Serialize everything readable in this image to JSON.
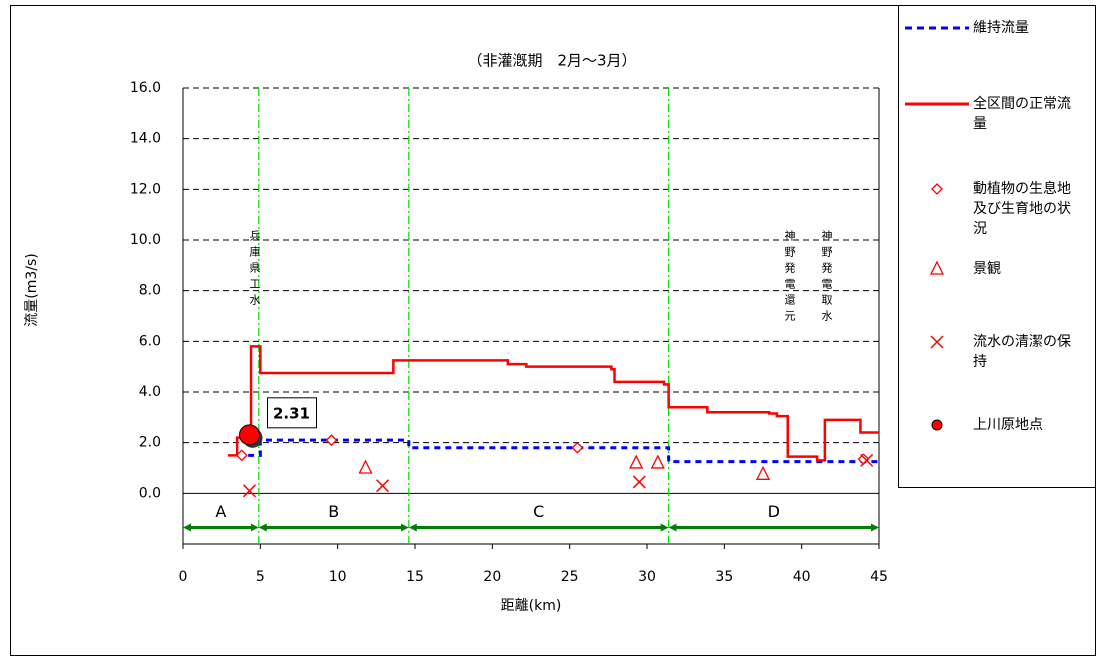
{
  "chart_data": {
    "type": "line",
    "title": "（非灌漑期　2月～3月）",
    "y_label": "流量(m3/s)",
    "x_label": "距離(km)",
    "xlim": [
      0,
      45
    ],
    "xticks": [
      0,
      5,
      10,
      15,
      20,
      25,
      30,
      35,
      40,
      45
    ],
    "ylim": [
      -2,
      16
    ],
    "yticks": [
      {
        "value": 0,
        "label": "0.0"
      },
      {
        "value": 2,
        "label": "2.0"
      },
      {
        "value": 4,
        "label": "4.0"
      },
      {
        "value": 6,
        "label": "6.0"
      },
      {
        "value": 8,
        "label": "8.0"
      },
      {
        "value": 10,
        "label": "10.0"
      },
      {
        "value": 12,
        "label": "12.0"
      },
      {
        "value": 14,
        "label": "14.0"
      },
      {
        "value": 16,
        "label": "16.0"
      }
    ],
    "grid": true,
    "series": [
      {
        "name": "維持流量",
        "color": "#0000ff",
        "marker": "dashed-line",
        "x": [
          3.5,
          5.0,
          5.0,
          14.6,
          14.6,
          31.4,
          31.4,
          45
        ],
        "values": [
          1.5,
          1.5,
          2.1,
          2.1,
          1.8,
          1.8,
          1.25,
          1.25
        ]
      },
      {
        "name": "全区間の正常流量",
        "color": "#ff0000",
        "marker": "line",
        "x": [
          2.9,
          3.5,
          3.5,
          4.4,
          4.4,
          5.0,
          5.0,
          13.6,
          13.6,
          21.0,
          21.0,
          22.2,
          22.2,
          27.7,
          27.7,
          27.9,
          27.9,
          31.1,
          31.1,
          31.4,
          31.4,
          33.9,
          33.9,
          37.9,
          37.9,
          38.4,
          38.4,
          39.1,
          39.1,
          41.0,
          41.0,
          41.5,
          41.5,
          43.8,
          43.8,
          45
        ],
        "values": [
          1.5,
          1.5,
          2.2,
          2.2,
          5.8,
          5.8,
          4.75,
          4.75,
          5.25,
          5.25,
          5.1,
          5.1,
          5.0,
          5.0,
          4.9,
          4.9,
          4.4,
          4.4,
          4.3,
          4.3,
          3.4,
          3.4,
          3.2,
          3.2,
          3.15,
          3.15,
          3.05,
          3.05,
          1.45,
          1.45,
          1.3,
          1.3,
          2.9,
          2.9,
          2.4,
          2.4
        ]
      },
      {
        "name": "動植物の生息地及び生育地の状況",
        "color": "#ff0000",
        "marker": "diamond",
        "x": [
          3.8,
          9.6,
          25.5,
          44.0
        ],
        "values": [
          1.5,
          2.1,
          1.8,
          1.35
        ]
      },
      {
        "name": "景観",
        "color": "#ff0000",
        "marker": "triangle",
        "x": [
          11.8,
          29.3,
          30.7,
          37.5
        ],
        "values": [
          1.0,
          1.2,
          1.2,
          0.75
        ]
      },
      {
        "name": "流水の清潔の保持",
        "color": "#ff0000",
        "marker": "x",
        "x": [
          4.3,
          12.9,
          29.5,
          44.2
        ],
        "values": [
          0.1,
          0.3,
          0.45,
          1.3
        ]
      },
      {
        "name": "上川原地点",
        "color": "#ff0000",
        "marker": "circle",
        "x": [
          4.3
        ],
        "values": [
          2.31
        ]
      }
    ],
    "zones": [
      {
        "label": "A",
        "start": 0,
        "end": 4.9
      },
      {
        "label": "B",
        "start": 4.9,
        "end": 14.6
      },
      {
        "label": "C",
        "start": 14.6,
        "end": 31.4
      },
      {
        "label": "D",
        "start": 31.4,
        "end": 45
      }
    ],
    "annotations": [
      "兵庫県工水",
      "神野発電還元",
      "神野発電取水"
    ]
  }
}
